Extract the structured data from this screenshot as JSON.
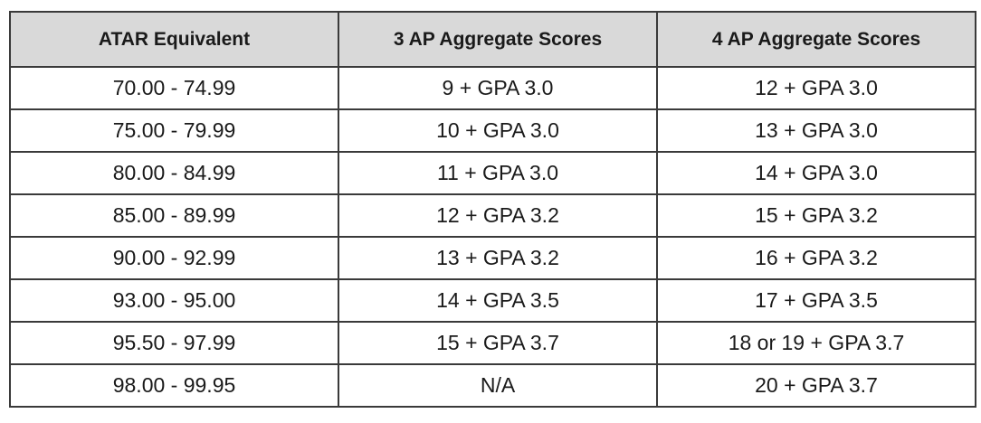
{
  "table": {
    "headers": [
      "ATAR Equivalent",
      "3 AP Aggregate Scores",
      "4 AP Aggregate Scores"
    ],
    "rows": [
      [
        "70.00 - 74.99",
        "9 + GPA 3.0",
        "12 + GPA 3.0"
      ],
      [
        "75.00 - 79.99",
        "10 + GPA 3.0",
        "13 + GPA 3.0"
      ],
      [
        "80.00 - 84.99",
        "11 + GPA 3.0",
        "14 + GPA 3.0"
      ],
      [
        "85.00 - 89.99",
        "12 + GPA 3.2",
        "15 + GPA 3.2"
      ],
      [
        "90.00 - 92.99",
        "13 + GPA 3.2",
        "16 + GPA 3.2"
      ],
      [
        "93.00 - 95.00",
        "14 + GPA 3.5",
        "17 + GPA 3.5"
      ],
      [
        "95.50 - 97.99",
        "15 + GPA 3.7",
        "18 or 19 + GPA 3.7"
      ],
      [
        "98.00 - 99.95",
        "N/A",
        "20 + GPA 3.7"
      ]
    ],
    "colors": {
      "header_background": "#d9d9d9",
      "border": "#3a3a3a",
      "text": "#1a1a1a"
    }
  }
}
